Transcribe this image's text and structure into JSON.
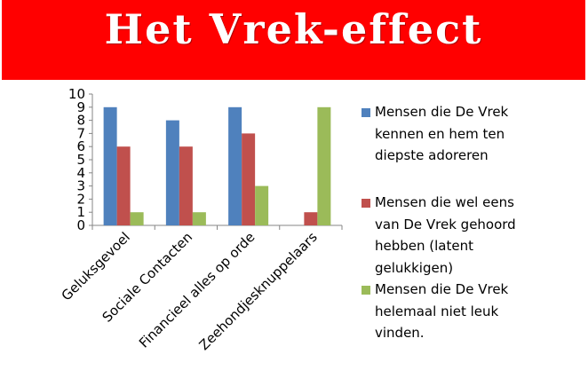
{
  "banner": {
    "title": "Het Vrek-effect",
    "color": "#ff0000"
  },
  "chart_data": {
    "type": "bar",
    "categories": [
      "Geluksgevoel",
      "Sociale Contacten",
      "Financieel alles op orde",
      "Zeehondjesknuppelaars"
    ],
    "series": [
      {
        "name": "Mensen die De Vrek kennen  en hem ten diepste adoreren",
        "values": [
          9,
          8,
          9,
          0
        ],
        "color": "#4f81bd"
      },
      {
        "name": "Mensen die wel eens van De Vrek gehoord hebben (latent gelukkigen)",
        "values": [
          6,
          6,
          7,
          1
        ],
        "color": "#c0504d"
      },
      {
        "name": " Mensen die De Vrek helemaal niet leuk vinden.",
        "values": [
          1,
          1,
          3,
          9
        ],
        "color": "#9bbb59"
      }
    ],
    "ylim": [
      0,
      10
    ],
    "yticks": [
      0,
      1,
      2,
      3,
      4,
      5,
      6,
      7,
      8,
      9,
      10
    ],
    "grid": false,
    "legend": "right"
  }
}
